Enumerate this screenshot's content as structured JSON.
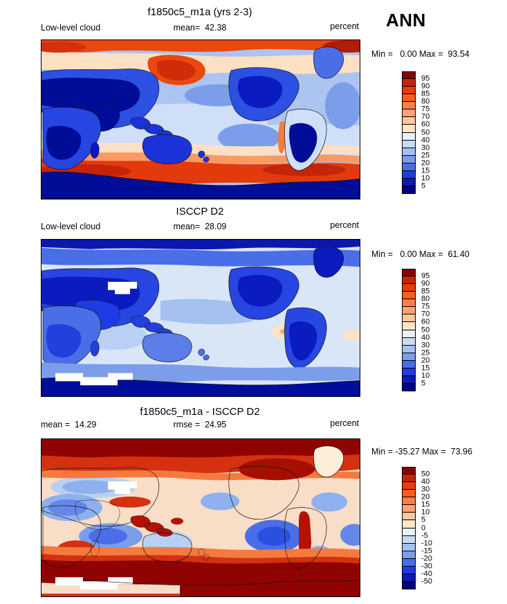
{
  "figure": {
    "season": "ANN",
    "variable": "Low-level cloud",
    "units": "percent"
  },
  "palette_top_to_bottom": [
    "#8b0000",
    "#c1260b",
    "#ea3a10",
    "#fb5c20",
    "#fc7e4b",
    "#fba277",
    "#fbc79f",
    "#fde5ca",
    "#e9f0fb",
    "#c9dcf6",
    "#a4c1f0",
    "#7b9dea",
    "#4a6ee8",
    "#1d3ce4",
    "#1119b1",
    "#000080"
  ],
  "chart_data": [
    {
      "type": "heatmap",
      "panel": "model",
      "title": "f1850c5_m1a (yrs 2-3)",
      "left_label": "Low-level cloud",
      "center_label": "mean=  42.38",
      "right_label": "percent",
      "minmax_label": "Min =   0.00 Max =  93.54",
      "mean": 42.38,
      "min": 0.0,
      "max": 93.54,
      "units": "percent",
      "levels": [
        5,
        10,
        15,
        20,
        25,
        30,
        40,
        50,
        60,
        70,
        75,
        80,
        85,
        90,
        95
      ],
      "ticks_display": [
        "95",
        "90",
        "85",
        "80",
        "75",
        "70",
        "60",
        "50",
        "40",
        "30",
        "25",
        "20",
        "15",
        "10",
        "5"
      ],
      "projection": "global latitude-longitude (0-360E)",
      "description": "Simulated annual-mean low-level cloud: high values (red) along Arctic ocean margins and the Southern Ocean storm track, dark-blue minima over continents, navy minimum over Antarctica and the tropics' land areas"
    },
    {
      "type": "heatmap",
      "panel": "observations",
      "title": "ISCCP D2",
      "left_label": "Low-level cloud",
      "center_label": "mean=  28.09",
      "right_label": "percent",
      "minmax_label": "Min =   0.00 Max =  61.40",
      "mean": 28.09,
      "min": 0.0,
      "max": 61.4,
      "units": "percent",
      "levels": [
        5,
        10,
        15,
        20,
        25,
        30,
        40,
        50,
        60,
        70,
        75,
        80,
        85,
        90,
        95
      ],
      "ticks_display": [
        "95",
        "90",
        "85",
        "80",
        "75",
        "70",
        "60",
        "50",
        "40",
        "30",
        "25",
        "20",
        "15",
        "10",
        "5"
      ],
      "projection": "global latitude-longitude (0-360E)",
      "description": "Observed ISCCP D2 annual-mean low-level cloud: predominantly blue (low-to-moderate amounts), darkest blue over high-latitude land and polar bands, faint peach subtropical ocean spots, white missing-data blocks over the Tibetan Plateau and Antarctica"
    },
    {
      "type": "heatmap",
      "panel": "difference",
      "title": "f1850c5_m1a - ISCCP D2",
      "left_label": "mean =  14.29",
      "center_label": "rmse =  24.95",
      "right_label": "percent",
      "minmax_label": "Min = -35.27 Max =  73.96",
      "mean": 14.29,
      "rmse": 24.95,
      "min": -35.27,
      "max": 73.96,
      "units": "percent",
      "levels": [
        -50,
        -40,
        -30,
        -20,
        -15,
        -10,
        -5,
        0,
        5,
        10,
        15,
        20,
        30,
        40,
        50
      ],
      "ticks_display": [
        "50",
        "40",
        "30",
        "20",
        "15",
        "10",
        "5",
        "0",
        "-5",
        "-10",
        "-15",
        "-20",
        "-30",
        "-40",
        "-50"
      ],
      "projection": "global latitude-longitude (0-360E)",
      "description": "Model minus ISCCP D2: widespread positive bias (red), strongest dark-red at high latitudes and over the Southern Ocean band, negative bias (blue) over subtropical stratocumulus ocean regions and parts of the continents, white missing-data blocks over Tibet and Antarctica"
    }
  ]
}
